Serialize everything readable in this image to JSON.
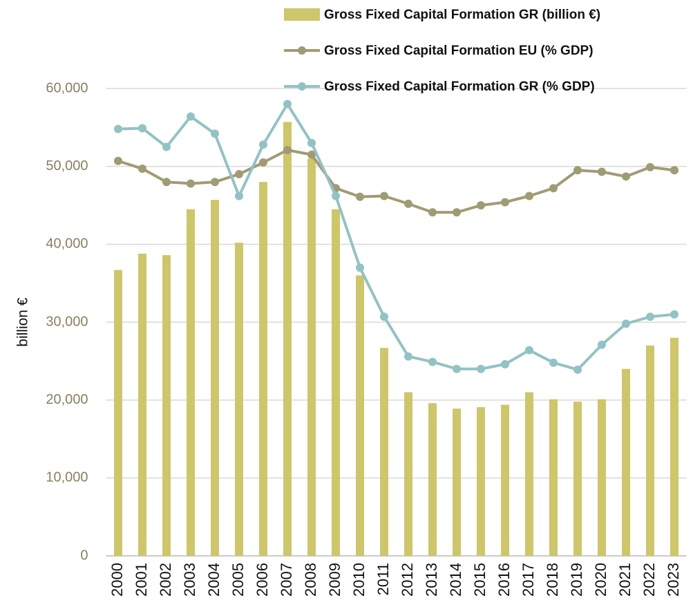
{
  "chart_data": {
    "type": "bar_line",
    "y_label": "billion €",
    "categories": [
      "2000",
      "2001",
      "2002",
      "2003",
      "2004",
      "2005",
      "2006",
      "2007",
      "2008",
      "2009",
      "2010",
      "2011",
      "2012",
      "2013",
      "2014",
      "2015",
      "2016",
      "2017",
      "2018",
      "2019",
      "2020",
      "2021",
      "2022",
      "2023"
    ],
    "series": [
      {
        "name": "Gross Fixed Capital Formation GR (billion €)",
        "type": "bar",
        "color": "#cdc66b",
        "values": [
          36700,
          38800,
          38600,
          44500,
          45700,
          40200,
          48000,
          55700,
          51000,
          44500,
          36000,
          26700,
          21000,
          19600,
          18900,
          19100,
          19400,
          21000,
          20100,
          19800,
          20100,
          24000,
          27000,
          28000
        ]
      },
      {
        "name": "Gross Fixed Capital Formation EU (% GDP)",
        "type": "line",
        "color": "#a19b74",
        "values": [
          50700,
          49700,
          48000,
          47800,
          48000,
          49000,
          50500,
          52100,
          51500,
          47200,
          46100,
          46200,
          45200,
          44100,
          44100,
          45000,
          45400,
          46200,
          47200,
          49500,
          49300,
          48700,
          49900,
          49500
        ]
      },
      {
        "name": "Gross Fixed Capital Formation GR (% GDP)",
        "type": "line",
        "color": "#93c2c4",
        "values": [
          54800,
          54900,
          52500,
          56400,
          54200,
          46200,
          52800,
          58000,
          53000,
          46200,
          37000,
          30700,
          25600,
          24900,
          24000,
          24000,
          24600,
          26400,
          24800,
          23900,
          27100,
          29800,
          30700,
          31000
        ]
      }
    ],
    "ylim": [
      0,
      60000
    ],
    "yticks": [
      0,
      {
        "value": 10000,
        "label": "10,000"
      },
      {
        "value": 20000,
        "label": "20,000"
      },
      {
        "value": 30000,
        "label": "30,000"
      },
      {
        "value": 40000,
        "label": "40,000"
      },
      {
        "value": 50000,
        "label": "50,000"
      },
      {
        "value": 60000,
        "label": "60,000"
      }
    ],
    "grid": true,
    "legend": "top-right"
  }
}
